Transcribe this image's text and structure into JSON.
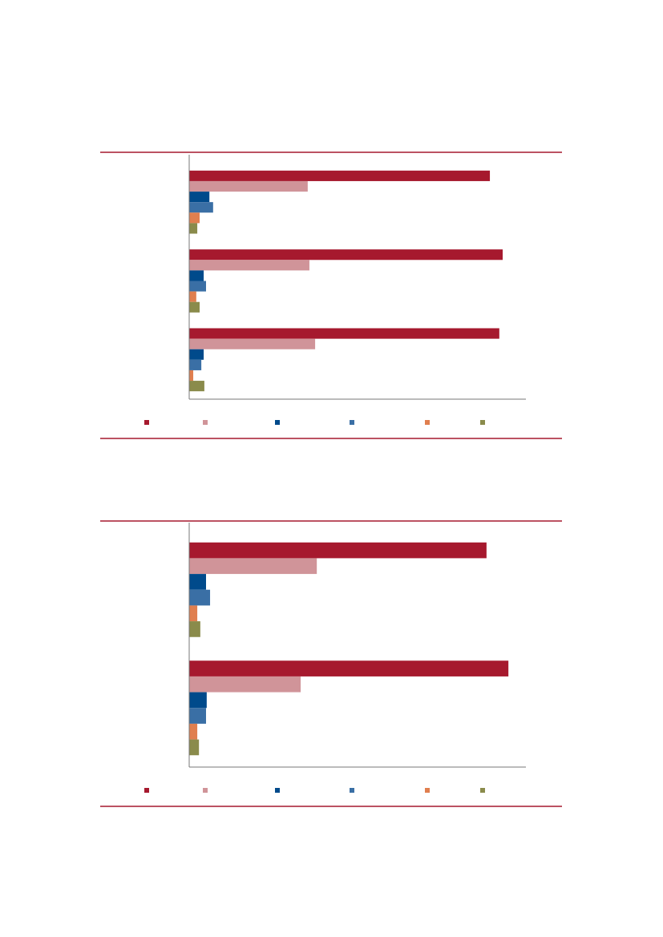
{
  "chart_data": [
    {
      "type": "bar",
      "orientation": "horizontal",
      "categories": [
        null,
        null,
        null
      ],
      "xlim": [
        0,
        100
      ],
      "series": [
        {
          "color": "#a6192e",
          "values": [
            89.3,
            93.1,
            92.1
          ]
        },
        {
          "color": "#d09499",
          "values": [
            35.2,
            35.7,
            37.4
          ]
        },
        {
          "color": "#004a8b",
          "values": [
            6.0,
            4.3,
            4.3
          ]
        },
        {
          "color": "#3a6fa5",
          "values": [
            7.1,
            5.0,
            3.6
          ]
        },
        {
          "color": "#e07f4f",
          "values": [
            3.1,
            2.1,
            1.2
          ]
        },
        {
          "color": "#8a8b4b",
          "values": [
            2.4,
            3.1,
            4.5
          ]
        }
      ]
    },
    {
      "type": "bar",
      "orientation": "horizontal",
      "categories": [
        null,
        null
      ],
      "xlim": [
        0,
        100
      ],
      "series": [
        {
          "color": "#a6192e",
          "values": [
            88.3,
            94.8
          ]
        },
        {
          "color": "#d09499",
          "values": [
            37.9,
            33.1
          ]
        },
        {
          "color": "#004a8b",
          "values": [
            5.0,
            5.2
          ]
        },
        {
          "color": "#3a6fa5",
          "values": [
            6.2,
            5.0
          ]
        },
        {
          "color": "#e07f4f",
          "values": [
            2.4,
            2.4
          ]
        },
        {
          "color": "#8a8b4b",
          "values": [
            3.3,
            2.9
          ]
        }
      ]
    }
  ]
}
